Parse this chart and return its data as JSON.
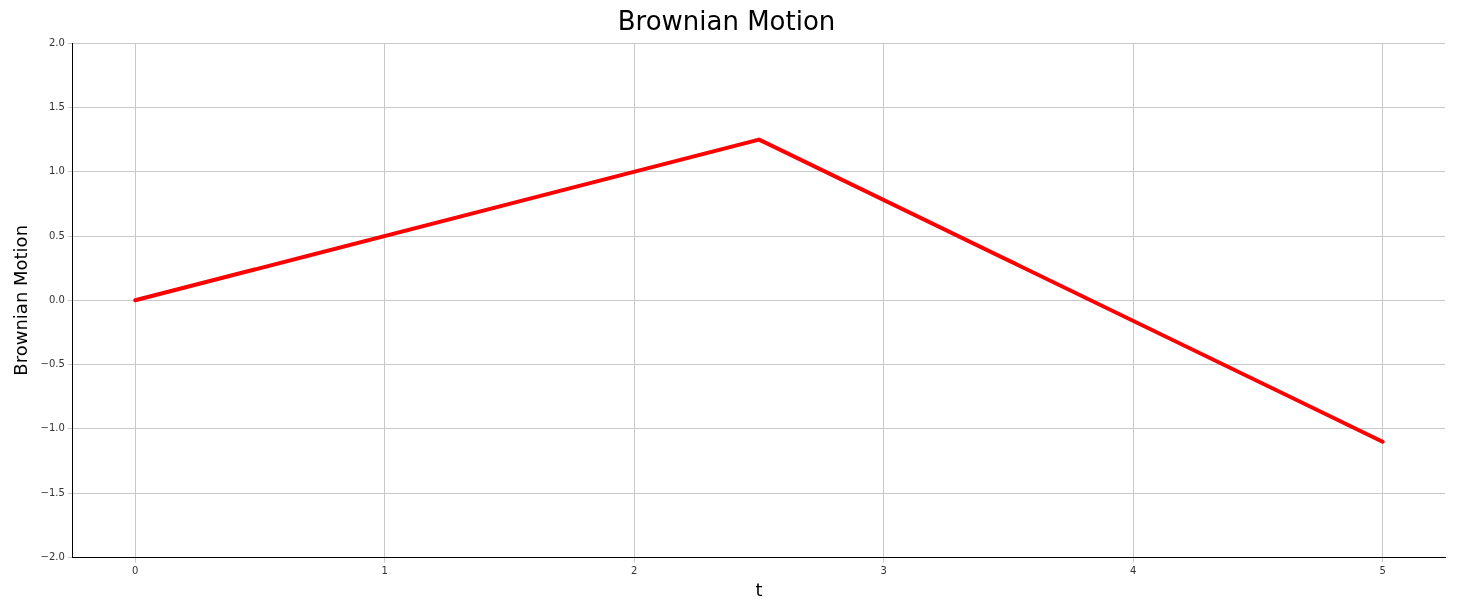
{
  "chart_data": {
    "type": "line",
    "title": "Brownian Motion",
    "xlabel": "t",
    "ylabel": "Brownian Motion",
    "series": [
      {
        "color": "#ff0000",
        "x": [
          0,
          2.5,
          5
        ],
        "values": [
          0,
          1.25,
          -1.1
        ]
      }
    ],
    "xlim": [
      -0.25,
      5.25
    ],
    "xticks": [
      0,
      1,
      2,
      3,
      4,
      5
    ],
    "ylim": [
      -2,
      2
    ],
    "yticks": [
      {
        "value": -2,
        "label": "−2.0"
      },
      {
        "value": -1.5,
        "label": "−1.5"
      },
      {
        "value": -1,
        "label": "−1.0"
      },
      {
        "value": -0.5,
        "label": "−0.5"
      },
      {
        "value": 0,
        "label": "0.0"
      },
      {
        "value": 0.5,
        "label": "0.5"
      },
      {
        "value": 1,
        "label": "1.0"
      },
      {
        "value": 1.5,
        "label": "1.5"
      },
      {
        "value": 2,
        "label": "2.0"
      }
    ],
    "grid": true,
    "legend": false,
    "marker": "none",
    "line_style": "solid"
  }
}
